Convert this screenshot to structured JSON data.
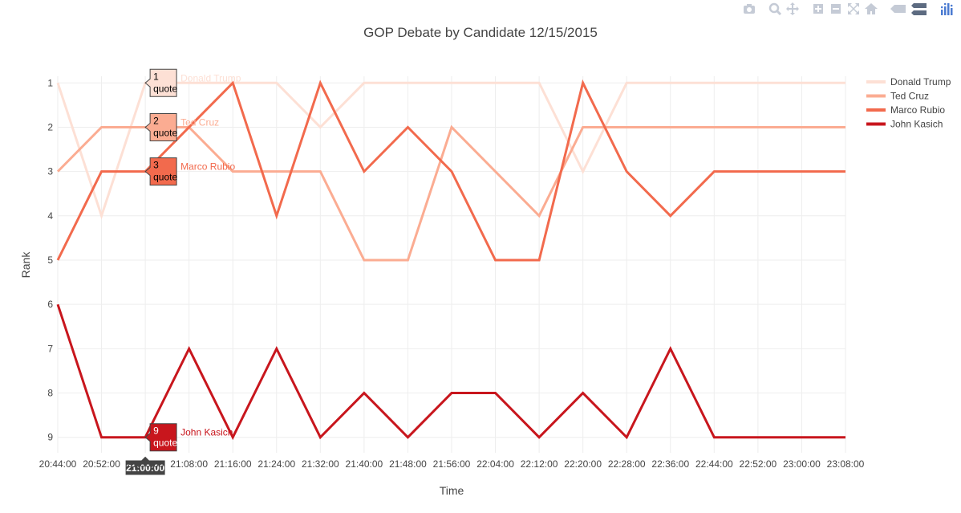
{
  "modebar": {
    "buttons": [
      {
        "name": "camera-icon"
      },
      {
        "name": "zoom-icon"
      },
      {
        "name": "pan-icon"
      },
      {
        "name": "zoom-in-icon"
      },
      {
        "name": "zoom-out-icon"
      },
      {
        "name": "autoscale-icon"
      },
      {
        "name": "home-icon"
      },
      {
        "name": "hover-closest-icon"
      },
      {
        "name": "hover-compare-icon"
      },
      {
        "name": "plotly-logo-icon"
      }
    ]
  },
  "chart_data": {
    "type": "line",
    "title": "GOP Debate by Candidate 12/15/2015",
    "xlabel": "Time",
    "ylabel": "Rank",
    "x": [
      "20:44:00",
      "20:52:00",
      "21:00:00",
      "21:08:00",
      "21:16:00",
      "21:24:00",
      "21:32:00",
      "21:40:00",
      "21:48:00",
      "21:56:00",
      "22:04:00",
      "22:12:00",
      "22:20:00",
      "22:28:00",
      "22:36:00",
      "22:44:00",
      "22:52:00",
      "23:00:00",
      "23:08:00"
    ],
    "yticks": [
      "1",
      "2",
      "3",
      "4",
      "5",
      "6",
      "7",
      "8",
      "9"
    ],
    "ylim": [
      0.85,
      9.35
    ],
    "y_reversed": true,
    "grid": true,
    "legend_position": "top-right",
    "series": [
      {
        "name": "Donald Trump",
        "color": "#fde0d5",
        "width": 3,
        "values": [
          1,
          4,
          1,
          1,
          1,
          1,
          2,
          1,
          1,
          1,
          1,
          1,
          3,
          1,
          1,
          1,
          1,
          1,
          1
        ]
      },
      {
        "name": "Ted Cruz",
        "color": "#fbac92",
        "width": 3,
        "values": [
          3,
          2,
          2,
          2,
          3,
          3,
          3,
          5,
          5,
          2,
          3,
          4,
          2,
          2,
          2,
          2,
          2,
          2,
          2
        ]
      },
      {
        "name": "Marco Rubio",
        "color": "#f26a4d",
        "width": 3,
        "values": [
          5,
          3,
          3,
          2,
          1,
          4,
          1,
          3,
          2,
          3,
          5,
          5,
          1,
          3,
          4,
          3,
          3,
          3,
          3
        ]
      },
      {
        "name": "John Kasich",
        "color": "#c8161d",
        "width": 3,
        "values": [
          6,
          9,
          9,
          7,
          9,
          7,
          9,
          8,
          9,
          8,
          8,
          9,
          8,
          9,
          7,
          9,
          9,
          9,
          9
        ]
      }
    ],
    "hover": {
      "x_index": 2,
      "x_label": "21:00:00",
      "suffix": "quote",
      "items": [
        {
          "series": "Donald Trump",
          "rank": "1"
        },
        {
          "series": "Ted Cruz",
          "rank": "2"
        },
        {
          "series": "Marco Rubio",
          "rank": "3"
        },
        {
          "series": "John Kasich",
          "rank": "9"
        }
      ]
    }
  }
}
